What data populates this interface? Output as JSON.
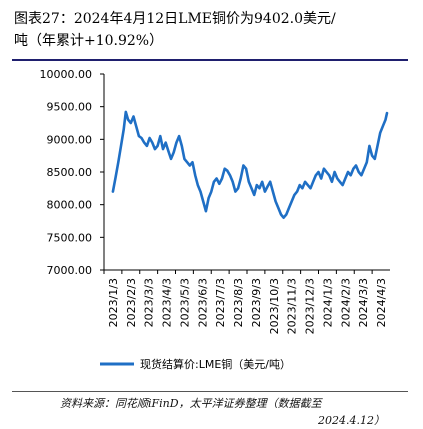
{
  "title_line1": "图表27：2024年4月12日LME铜价为9402.0美元/",
  "title_line2": "吨（年累计+10.92%）",
  "source_line1": "资料来源：同花顺iFinD，太平洋证券整理（数据截至",
  "source_line2": "2024.4.12）",
  "chart_data": {
    "type": "line",
    "title": "",
    "xlabel": "",
    "ylabel": "",
    "ylim": [
      7000,
      10000
    ],
    "y_ticks": [
      "7000.00",
      "7500.00",
      "8000.00",
      "8500.00",
      "9000.00",
      "9500.00",
      "10000.00"
    ],
    "x_ticks": [
      "2023/1/3",
      "2023/2/3",
      "2023/3/3",
      "2023/4/3",
      "2023/5/3",
      "2023/6/3",
      "2023/7/3",
      "2023/8/3",
      "2023/9/3",
      "2023/10/3",
      "2023/11/3",
      "2023/12/3",
      "2024/1/3",
      "2024/2/3",
      "2024/3/3",
      "2024/4/3"
    ],
    "legend": "bottom",
    "grid": false,
    "color": "#1f6fc5",
    "series": [
      {
        "name": "现货结算价:LME铜（美元/吨）",
        "values": [
          [
            0.0,
            8200
          ],
          [
            0.15,
            8420
          ],
          [
            0.3,
            8650
          ],
          [
            0.45,
            8900
          ],
          [
            0.6,
            9150
          ],
          [
            0.72,
            9420
          ],
          [
            0.85,
            9300
          ],
          [
            1.0,
            9250
          ],
          [
            1.15,
            9350
          ],
          [
            1.3,
            9200
          ],
          [
            1.45,
            9050
          ],
          [
            1.6,
            9020
          ],
          [
            1.75,
            8950
          ],
          [
            1.9,
            8900
          ],
          [
            2.05,
            9020
          ],
          [
            2.2,
            8950
          ],
          [
            2.35,
            8850
          ],
          [
            2.5,
            8900
          ],
          [
            2.65,
            9050
          ],
          [
            2.8,
            8850
          ],
          [
            2.95,
            8950
          ],
          [
            3.1,
            8820
          ],
          [
            3.25,
            8700
          ],
          [
            3.4,
            8800
          ],
          [
            3.55,
            8950
          ],
          [
            3.7,
            9050
          ],
          [
            3.85,
            8900
          ],
          [
            4.0,
            8700
          ],
          [
            4.15,
            8650
          ],
          [
            4.3,
            8600
          ],
          [
            4.45,
            8650
          ],
          [
            4.6,
            8450
          ],
          [
            4.75,
            8300
          ],
          [
            4.9,
            8200
          ],
          [
            5.05,
            8050
          ],
          [
            5.2,
            7900
          ],
          [
            5.35,
            8100
          ],
          [
            5.5,
            8200
          ],
          [
            5.65,
            8350
          ],
          [
            5.8,
            8400
          ],
          [
            5.95,
            8320
          ],
          [
            6.1,
            8400
          ],
          [
            6.25,
            8550
          ],
          [
            6.4,
            8520
          ],
          [
            6.55,
            8450
          ],
          [
            6.7,
            8350
          ],
          [
            6.85,
            8200
          ],
          [
            7.0,
            8250
          ],
          [
            7.15,
            8400
          ],
          [
            7.3,
            8600
          ],
          [
            7.45,
            8550
          ],
          [
            7.6,
            8350
          ],
          [
            7.75,
            8250
          ],
          [
            7.9,
            8150
          ],
          [
            8.05,
            8300
          ],
          [
            8.2,
            8250
          ],
          [
            8.35,
            8350
          ],
          [
            8.5,
            8200
          ],
          [
            8.65,
            8280
          ],
          [
            8.8,
            8350
          ],
          [
            8.95,
            8200
          ],
          [
            9.1,
            8050
          ],
          [
            9.25,
            7950
          ],
          [
            9.4,
            7850
          ],
          [
            9.55,
            7800
          ],
          [
            9.7,
            7850
          ],
          [
            9.85,
            7950
          ],
          [
            10.0,
            8050
          ],
          [
            10.15,
            8150
          ],
          [
            10.3,
            8200
          ],
          [
            10.45,
            8300
          ],
          [
            10.6,
            8250
          ],
          [
            10.75,
            8350
          ],
          [
            10.9,
            8300
          ],
          [
            11.05,
            8250
          ],
          [
            11.2,
            8350
          ],
          [
            11.35,
            8450
          ],
          [
            11.5,
            8500
          ],
          [
            11.65,
            8400
          ],
          [
            11.8,
            8550
          ],
          [
            11.95,
            8500
          ],
          [
            12.1,
            8450
          ],
          [
            12.25,
            8350
          ],
          [
            12.4,
            8500
          ],
          [
            12.55,
            8400
          ],
          [
            12.7,
            8350
          ],
          [
            12.85,
            8300
          ],
          [
            13.0,
            8400
          ],
          [
            13.15,
            8500
          ],
          [
            13.3,
            8450
          ],
          [
            13.45,
            8550
          ],
          [
            13.6,
            8600
          ],
          [
            13.75,
            8500
          ],
          [
            13.9,
            8450
          ],
          [
            14.05,
            8550
          ],
          [
            14.2,
            8650
          ],
          [
            14.35,
            8900
          ],
          [
            14.5,
            8750
          ],
          [
            14.65,
            8700
          ],
          [
            14.8,
            8900
          ],
          [
            14.95,
            9100
          ],
          [
            15.1,
            9200
          ],
          [
            15.25,
            9300
          ],
          [
            15.33,
            9402
          ]
        ]
      }
    ]
  }
}
